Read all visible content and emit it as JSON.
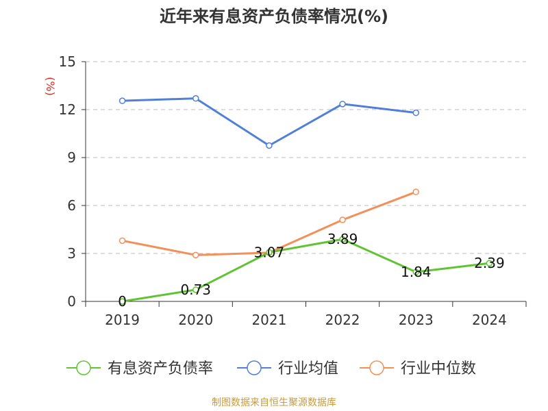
{
  "page": {
    "title": "近年来有息资产负债率情况(%)",
    "source": "制图数据来自恒生聚源数据库"
  },
  "colors": {
    "debt_ratio": "#5fc431",
    "industry_avg": "#4f7fd8",
    "industry_median": "#f39059",
    "source_text": "#c89a3a",
    "ylabel": "#e0281e",
    "axis": "#333333",
    "grid": "#bbbbbb"
  },
  "chart_data": {
    "type": "line",
    "title": "近年来有息资产负债率情况(%)",
    "xlabel": "",
    "ylabel": "(%)",
    "categories": [
      "2019",
      "2020",
      "2021",
      "2022",
      "2023",
      "2024"
    ],
    "ylim": [
      0,
      15
    ],
    "yticks": [
      0,
      3,
      6,
      9,
      12,
      15
    ],
    "grid": true,
    "legend_position": "bottom",
    "series": [
      {
        "name": "有息资产负债率",
        "color_key": "debt_ratio",
        "values": [
          0,
          0.73,
          3.07,
          3.89,
          1.84,
          2.39
        ],
        "labels": [
          "0",
          "0.73",
          "3.07",
          "3.89",
          "1.84",
          "2.39"
        ],
        "show_labels": true
      },
      {
        "name": "行业均值",
        "color_key": "industry_avg",
        "values": [
          12.55,
          12.7,
          9.75,
          12.35,
          11.8,
          null
        ],
        "show_labels": false
      },
      {
        "name": "行业中位数",
        "color_key": "industry_median",
        "values": [
          3.8,
          2.9,
          3.05,
          5.1,
          6.85,
          null
        ],
        "show_labels": false
      }
    ]
  }
}
